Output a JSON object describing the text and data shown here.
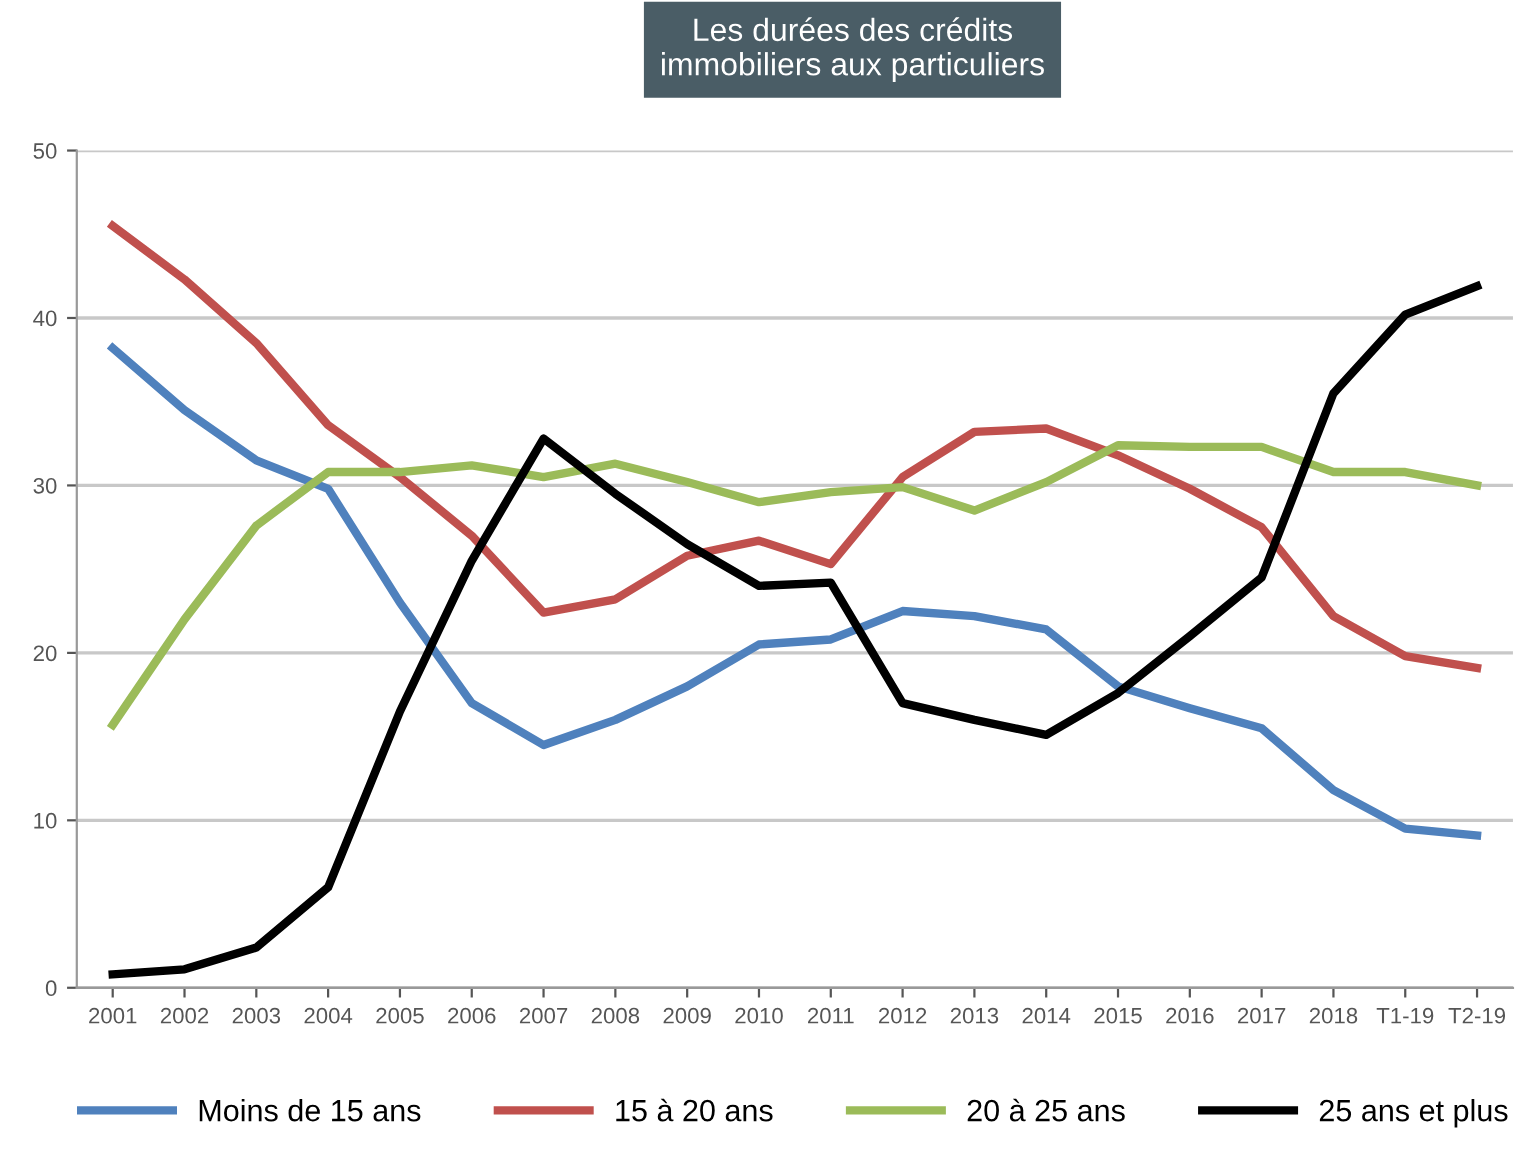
{
  "chart_data": {
    "type": "line",
    "title": "Les durées des crédits\nimmobiliers aux particuliers",
    "categories": [
      "2001",
      "2002",
      "2003",
      "2004",
      "2005",
      "2006",
      "2007",
      "2008",
      "2009",
      "2010",
      "2011",
      "2012",
      "2013",
      "2014",
      "2015",
      "2016",
      "2017",
      "2018",
      "T1-19",
      "T2-19"
    ],
    "series": [
      {
        "name": "Moins de 15 ans",
        "color": "#4f81bd",
        "values": [
          38.2,
          34.5,
          31.5,
          29.8,
          23,
          17,
          14.5,
          16,
          18,
          20.5,
          20.8,
          22.5,
          22.2,
          21.4,
          18,
          16.7,
          15.5,
          11.8,
          9.5,
          9.1
        ]
      },
      {
        "name": "15 à 20 ans",
        "color": "#c0504d",
        "values": [
          45.5,
          42.3,
          38.5,
          33.6,
          30.5,
          27,
          22.4,
          23.2,
          25.8,
          26.7,
          25.3,
          30.5,
          33.2,
          33.4,
          31.8,
          29.8,
          27.5,
          22.2,
          19.8,
          19.1
        ]
      },
      {
        "name": "20 à 25 ans",
        "color": "#9bbb59",
        "values": [
          15.7,
          22,
          27.6,
          30.8,
          30.8,
          31.2,
          30.5,
          31.3,
          30.2,
          29,
          29.6,
          29.9,
          28.5,
          30.2,
          32.4,
          32.3,
          32.3,
          30.8,
          30.8,
          30
        ]
      },
      {
        "name": "25 ans et plus",
        "color": "#000000",
        "values": [
          0.8,
          1.1,
          2.4,
          6,
          16.5,
          25.5,
          32.8,
          29.5,
          26.5,
          24,
          24.2,
          17,
          16,
          15.1,
          17.6,
          21,
          24.5,
          35.5,
          40.2,
          41.9
        ]
      }
    ],
    "ylim": [
      0,
      50
    ],
    "yticks": [
      0,
      10,
      20,
      30,
      40,
      50
    ],
    "grid": "y",
    "legend": "bottom",
    "marker": "none",
    "line_style": "solid"
  }
}
